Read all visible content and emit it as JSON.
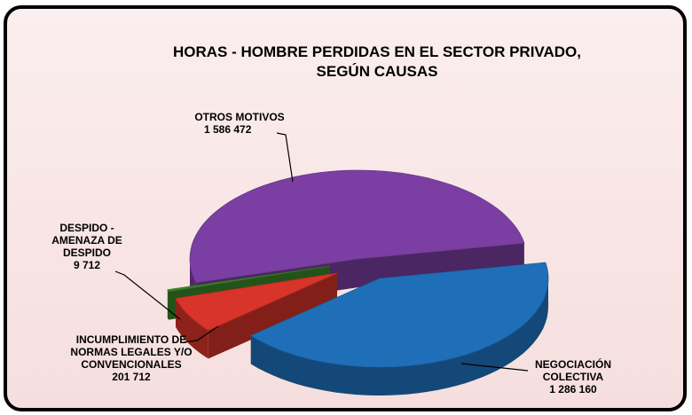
{
  "chart_data": {
    "type": "pie3d",
    "title": [
      "HORAS - HOMBRE PERDIDAS EN EL SECTOR PRIVADO,",
      "SEGÚN  CAUSAS"
    ],
    "categories": [
      "NEGOCIACIÓN COLECTIVA",
      "INCUMPLIMIENTO DE NORMAS LEGALES Y/O CONVENCIONALES",
      "DESPIDO - AMENAZA DE DESPIDO",
      "OTROS MOTIVOS"
    ],
    "values": [
      1286160,
      201712,
      9712,
      1586472
    ],
    "value_labels": [
      "1 286 160",
      "201 712",
      "9 712",
      "1 586 472"
    ],
    "colors": [
      "#1f6fb8",
      "#d8342a",
      "#3c8a2a",
      "#7b3fa3"
    ]
  }
}
